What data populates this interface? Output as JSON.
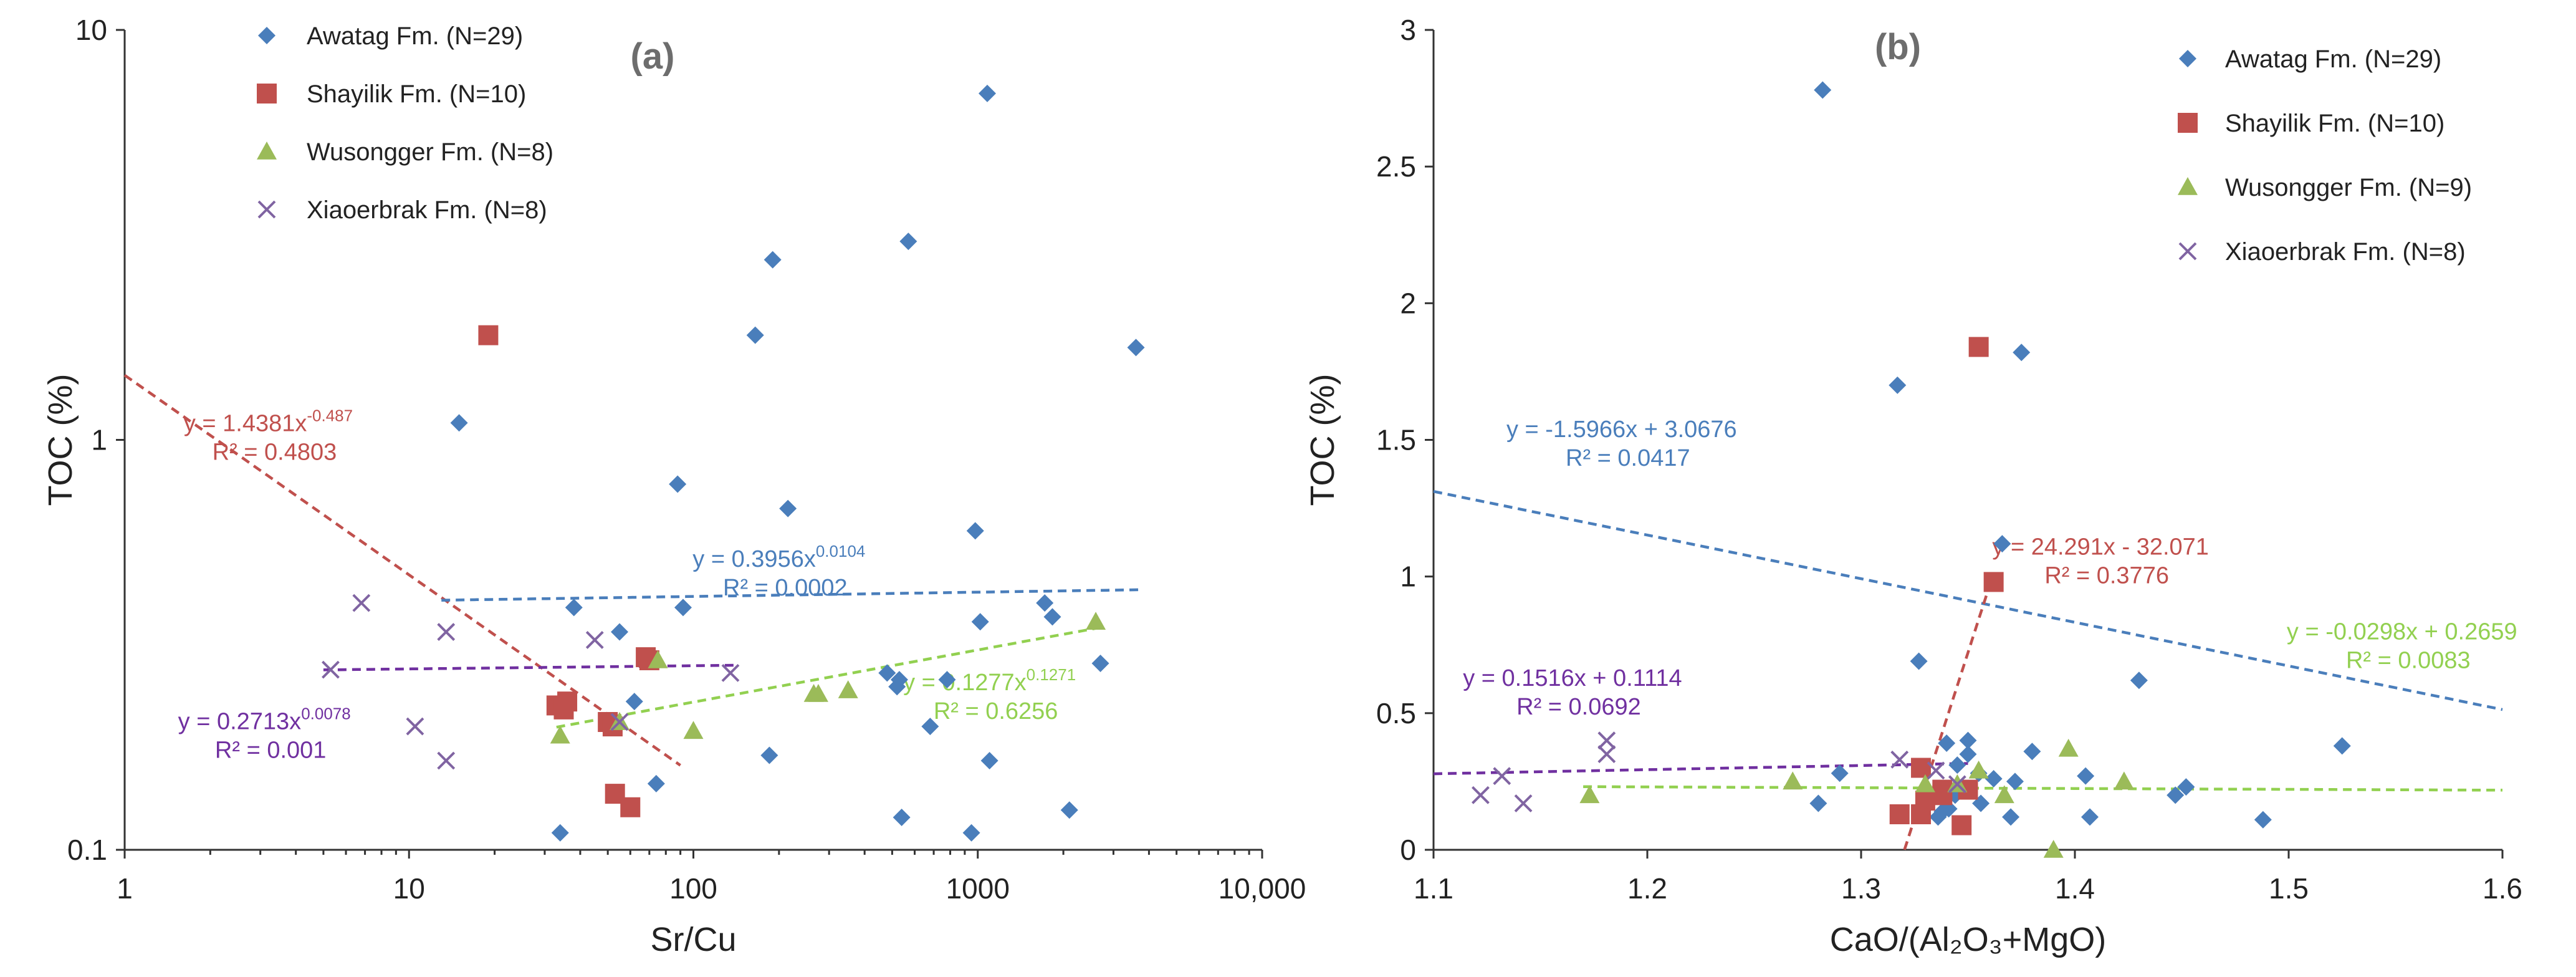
{
  "colors": {
    "awatag": "#4a7ebb",
    "shayilik": "#c0504d",
    "wusongger": "#9bbb59",
    "xiaoerbrak": "#8064a2",
    "xiao_trend": "#7030a0",
    "wus_trend": "#92d050"
  },
  "chart_data": [
    {
      "panel_label": "(a)",
      "type": "scatter",
      "xlabel": "Sr/Cu",
      "ylabel": "TOC (%)",
      "xscale": "log",
      "yscale": "log",
      "xlim": [
        1,
        10000
      ],
      "ylim": [
        0.1,
        10
      ],
      "xticks": [
        1,
        10,
        100,
        1000,
        10000
      ],
      "xtick_labels": [
        "1",
        "10",
        "100",
        "1000",
        "10,000"
      ],
      "yticks": [
        0.1,
        1,
        10
      ],
      "ytick_labels": [
        "0.1",
        "1",
        "10"
      ],
      "legend_position": "top-left",
      "series": [
        {
          "key": "awatag",
          "name": "Awatag Fm. (N=29)",
          "marker": "diamond",
          "points": [
            [
              15,
              1.1
            ],
            [
              34,
              0.11
            ],
            [
              38,
              0.39
            ],
            [
              55,
              0.34
            ],
            [
              62,
              0.23
            ],
            [
              74,
              0.145
            ],
            [
              88,
              0.78
            ],
            [
              92,
              0.39
            ],
            [
              165,
              1.8
            ],
            [
              185,
              0.17
            ],
            [
              190,
              2.75
            ],
            [
              215,
              0.68
            ],
            [
              480,
              0.27
            ],
            [
              520,
              0.25
            ],
            [
              540,
              0.12
            ],
            [
              570,
              3.05
            ],
            [
              680,
              0.2
            ],
            [
              780,
              0.26
            ],
            [
              950,
              0.11
            ],
            [
              980,
              0.6
            ],
            [
              1020,
              0.36
            ],
            [
              1080,
              7.0
            ],
            [
              1100,
              0.165
            ],
            [
              1720,
              0.4
            ],
            [
              1830,
              0.37
            ],
            [
              2100,
              0.125
            ],
            [
              2700,
              0.285
            ],
            [
              3600,
              1.68
            ],
            [
              530,
              0.26
            ]
          ]
        },
        {
          "key": "shayilik",
          "name": "Shayilik Fm. (N=10)",
          "marker": "square",
          "points": [
            [
              19,
              1.8
            ],
            [
              33,
              0.225
            ],
            [
              36,
              0.23
            ],
            [
              50,
              0.205
            ],
            [
              53,
              0.137
            ],
            [
              60,
              0.127
            ],
            [
              68,
              0.295
            ],
            [
              52,
              0.2
            ],
            [
              35,
              0.22
            ],
            [
              70,
              0.29
            ]
          ]
        },
        {
          "key": "wusongger",
          "name": "Wusongger Fm. (N=8)",
          "marker": "triangle",
          "points": [
            [
              34,
              0.19
            ],
            [
              55,
              0.205
            ],
            [
              75,
              0.29
            ],
            [
              100,
              0.195
            ],
            [
              265,
              0.24
            ],
            [
              275,
              0.24
            ],
            [
              350,
              0.245
            ],
            [
              2600,
              0.36
            ]
          ]
        },
        {
          "key": "xiaoerbrak",
          "name": "Xiaoerbrak Fm. (N=8)",
          "marker": "x",
          "points": [
            [
              5.3,
              0.275
            ],
            [
              6.8,
              0.4
            ],
            [
              10.5,
              0.2
            ],
            [
              13.5,
              0.34
            ],
            [
              13.5,
              0.165
            ],
            [
              45,
              0.325
            ],
            [
              55,
              0.205
            ],
            [
              135,
              0.27
            ]
          ]
        }
      ],
      "trendlines": [
        {
          "key": "shayilik",
          "color_key": "shayilik",
          "form": "power",
          "a": 1.4381,
          "b": -0.487,
          "x_range": [
            1,
            90
          ],
          "equation": "y = 1.4381x",
          "exponent": "-0.487",
          "r2": "R² = 0.4803",
          "label_anchor": [
            3.2,
            1.05
          ]
        },
        {
          "key": "awatag",
          "color_key": "awatag",
          "form": "power",
          "a": 0.3956,
          "b": 0.0104,
          "x_range": [
            13,
            3800
          ],
          "equation": "y = 0.3956x",
          "exponent": "0.0104",
          "r2": "R² = 0.0002",
          "label_anchor": [
            200,
            0.49
          ]
        },
        {
          "key": "wusongger",
          "color_key": "wus_trend",
          "form": "power",
          "a": 0.1277,
          "b": 0.1271,
          "x_range": [
            33,
            2700
          ],
          "equation": "y = 0.1277x",
          "exponent": "0.1271",
          "r2": "R² = 0.6256",
          "label_anchor": [
            1100,
            0.245
          ]
        },
        {
          "key": "xiaoerbrak",
          "color_key": "xiao_trend",
          "form": "power",
          "a": 0.2713,
          "b": 0.0078,
          "x_range": [
            5,
            140
          ],
          "equation": "y = 0.2713x",
          "exponent": "0.0078",
          "r2": "R² = 0.001",
          "label_anchor": [
            3.1,
            0.197
          ]
        }
      ]
    },
    {
      "panel_label": "(b)",
      "type": "scatter",
      "xlabel": "CaO/(Al₂O₃+MgO)",
      "ylabel": "TOC (%)",
      "xscale": "linear",
      "yscale": "linear",
      "xlim": [
        1.1,
        1.6
      ],
      "ylim": [
        0,
        3
      ],
      "xticks": [
        1.1,
        1.2,
        1.3,
        1.4,
        1.5,
        1.6
      ],
      "xtick_labels": [
        "1.1",
        "1.2",
        "1.3",
        "1.4",
        "1.5",
        "1.6"
      ],
      "yticks": [
        0,
        0.5,
        1,
        1.5,
        2,
        2.5,
        3
      ],
      "ytick_labels": [
        "0",
        "0.5",
        "1",
        "1.5",
        "2",
        "2.5",
        "3"
      ],
      "legend_position": "top-right",
      "series": [
        {
          "key": "awatag",
          "name": "Awatag Fm. (N=29)",
          "marker": "diamond",
          "points": [
            [
              1.282,
              2.78
            ],
            [
              1.317,
              1.7
            ],
            [
              1.375,
              1.82
            ],
            [
              1.366,
              1.12
            ],
            [
              1.327,
              0.69
            ],
            [
              1.29,
              0.28
            ],
            [
              1.28,
              0.17
            ],
            [
              1.34,
              0.39
            ],
            [
              1.35,
              0.4
            ],
            [
              1.35,
              0.35
            ],
            [
              1.345,
              0.31
            ],
            [
              1.355,
              0.28
            ],
            [
              1.362,
              0.26
            ],
            [
              1.372,
              0.25
            ],
            [
              1.38,
              0.36
            ],
            [
              1.356,
              0.17
            ],
            [
              1.341,
              0.15
            ],
            [
              1.336,
              0.12
            ],
            [
              1.338,
              0.14
            ],
            [
              1.37,
              0.12
            ],
            [
              1.405,
              0.27
            ],
            [
              1.407,
              0.12
            ],
            [
              1.43,
              0.62
            ],
            [
              1.447,
              0.2
            ],
            [
              1.452,
              0.23
            ],
            [
              1.488,
              0.11
            ],
            [
              1.525,
              0.38
            ],
            [
              1.344,
              0.2
            ],
            [
              1.33,
              0.2
            ]
          ]
        },
        {
          "key": "shayilik",
          "name": "Shayilik Fm. (N=10)",
          "marker": "square",
          "points": [
            [
              1.355,
              1.84
            ],
            [
              1.362,
              0.98
            ],
            [
              1.328,
              0.3
            ],
            [
              1.318,
              0.13
            ],
            [
              1.328,
              0.13
            ],
            [
              1.347,
              0.09
            ],
            [
              1.338,
              0.22
            ],
            [
              1.35,
              0.22
            ],
            [
              1.338,
              0.2
            ],
            [
              1.33,
              0.18
            ]
          ]
        },
        {
          "key": "wusongger",
          "name": "Wusongger Fm. (N=9)",
          "marker": "triangle",
          "points": [
            [
              1.173,
              0.2
            ],
            [
              1.268,
              0.25
            ],
            [
              1.33,
              0.24
            ],
            [
              1.355,
              0.29
            ],
            [
              1.367,
              0.2
            ],
            [
              1.39,
              0.0
            ],
            [
              1.397,
              0.37
            ],
            [
              1.423,
              0.25
            ],
            [
              1.345,
              0.24
            ]
          ]
        },
        {
          "key": "xiaoerbrak",
          "name": "Xiaoerbrak Fm. (N=8)",
          "marker": "x",
          "points": [
            [
              1.122,
              0.2
            ],
            [
              1.132,
              0.27
            ],
            [
              1.142,
              0.17
            ],
            [
              1.181,
              0.4
            ],
            [
              1.181,
              0.35
            ],
            [
              1.318,
              0.33
            ],
            [
              1.335,
              0.29
            ],
            [
              1.345,
              0.24
            ]
          ]
        }
      ],
      "trendlines": [
        {
          "key": "awatag",
          "color_key": "awatag",
          "form": "linear",
          "a": -1.5966,
          "b": 3.0676,
          "x_range": [
            1.1,
            1.6
          ],
          "equation": "y = -1.5966x + 3.0676",
          "exponent": "",
          "r2": "R² = 0.0417",
          "label_anchor": [
            1.188,
            1.51
          ]
        },
        {
          "key": "shayilik",
          "color_key": "shayilik",
          "form": "linear",
          "a": 24.291,
          "b": -32.071,
          "x_range": [
            1.3203,
            1.3616
          ],
          "equation": "y = 24.291x - 32.071",
          "exponent": "",
          "r2": "R² = 0.3776",
          "label_anchor": [
            1.412,
            1.08
          ]
        },
        {
          "key": "wusongger",
          "color_key": "wus_trend",
          "form": "linear",
          "a": -0.0298,
          "b": 0.2659,
          "x_range": [
            1.17,
            1.6
          ],
          "equation": "y = -0.0298x + 0.2659",
          "exponent": "",
          "r2": "R² = 0.0083",
          "label_anchor": [
            1.553,
            0.77
          ]
        },
        {
          "key": "xiaoerbrak",
          "color_key": "xiao_trend",
          "form": "linear",
          "a": 0.1516,
          "b": 0.1114,
          "x_range": [
            1.1,
            1.35
          ],
          "equation": "y = 0.1516x + 0.1114",
          "exponent": "",
          "r2": "R² = 0.0692",
          "label_anchor": [
            1.165,
            0.6
          ]
        }
      ]
    }
  ]
}
